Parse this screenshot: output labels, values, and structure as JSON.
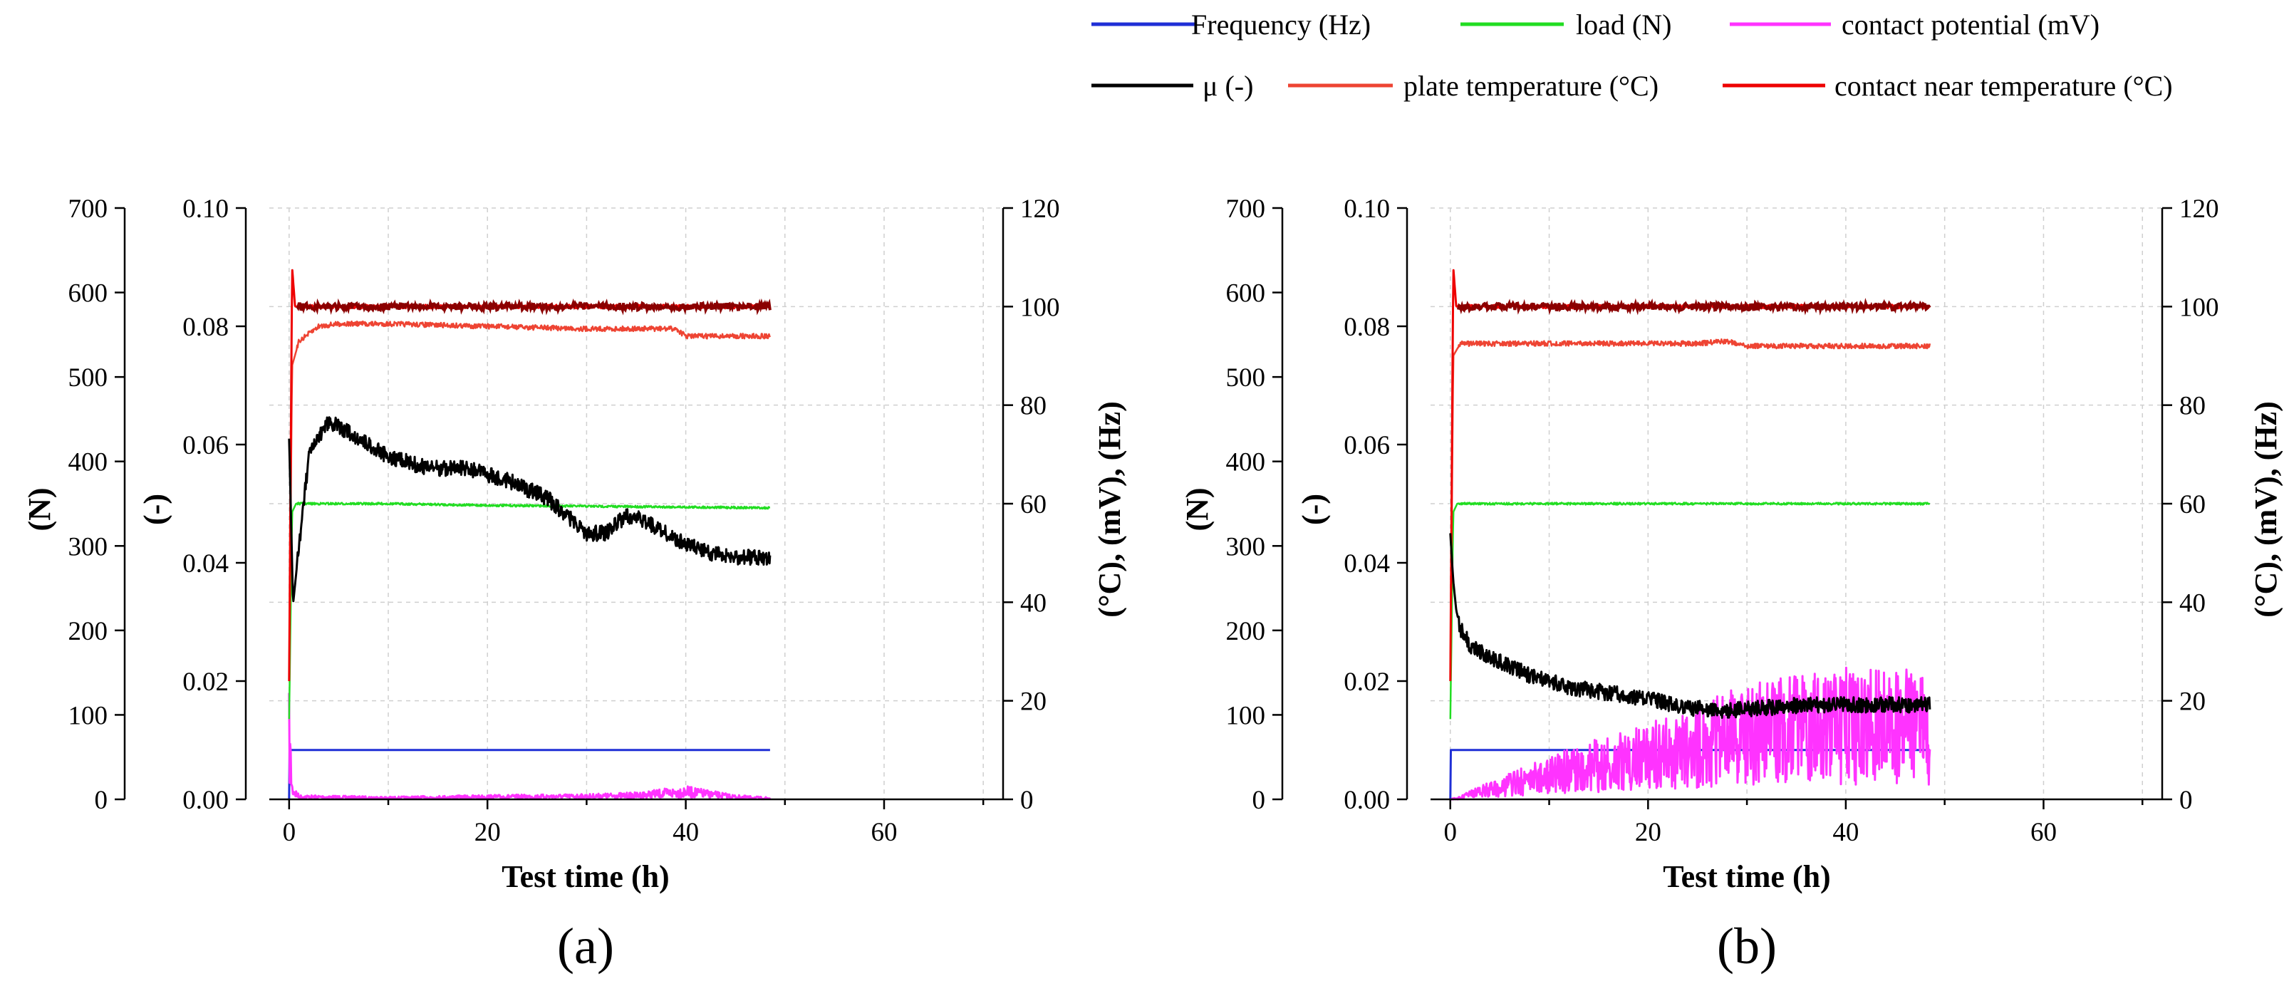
{
  "colors": {
    "frequency": "#1f2fd6",
    "load": "#22dd22",
    "potential": "#ff33ff",
    "mu": "#000000",
    "plate_temp": "#ee4433",
    "contact_temp": "#ee0000",
    "dark_temp": "#8b0000"
  },
  "legend": [
    {
      "key": "frequency",
      "label": "Frequency (Hz)"
    },
    {
      "key": "load",
      "label": "load (N)"
    },
    {
      "key": "potential",
      "label": "contact potential (mV)"
    },
    {
      "key": "mu",
      "label": "μ (-)"
    },
    {
      "key": "plate_temp",
      "label": "plate temperature (°C)"
    },
    {
      "key": "contact_temp",
      "label": "contact near temperature (°C)"
    }
  ],
  "chart_data": [
    {
      "type": "line",
      "panel_label": "(a)",
      "xlabel": "Test time (h)",
      "xlim": [
        -2,
        72
      ],
      "xticks": [
        "0",
        "20",
        "40",
        "60"
      ],
      "axes": {
        "load": {
          "label": "(N)",
          "lim": [
            0,
            700
          ],
          "ticks": [
            "0",
            "100",
            "200",
            "300",
            "400",
            "500",
            "600",
            "700"
          ]
        },
        "mu": {
          "label": "(-)",
          "lim": [
            0,
            0.1
          ],
          "ticks": [
            "0.00",
            "0.02",
            "0.04",
            "0.06",
            "0.08",
            "0.10"
          ]
        },
        "right": {
          "label": "(°C), (mV), (Hz)",
          "lim": [
            0,
            120
          ],
          "ticks": [
            "0",
            "20",
            "40",
            "60",
            "80",
            "100",
            "120"
          ]
        }
      },
      "series": [
        {
          "name": "Frequency (Hz)",
          "axis": "right",
          "x": [
            0,
            0.05,
            48.5
          ],
          "y": [
            0,
            10,
            10
          ]
        },
        {
          "name": "load (N)",
          "axis": "load",
          "x": [
            0,
            0.3,
            0.7,
            1,
            5,
            10,
            20,
            30,
            40,
            48.5
          ],
          "y": [
            95,
            340,
            350,
            350,
            350,
            350,
            348,
            347,
            346,
            345
          ]
        },
        {
          "name": "contact potential (mV)",
          "axis": "right",
          "x": [
            0,
            0.3,
            1,
            10,
            20,
            30,
            35,
            40,
            45,
            48.5
          ],
          "y": [
            12,
            2,
            0.5,
            0.3,
            0.5,
            0.6,
            0.8,
            1.5,
            0.5,
            0.2
          ]
        },
        {
          "name": "μ (-)",
          "axis": "mu",
          "x": [
            0,
            0.4,
            1,
            2,
            3,
            4,
            6,
            8,
            10,
            14,
            18,
            22,
            26,
            28,
            30,
            32,
            34,
            36,
            38,
            40,
            42,
            44,
            46,
            48.5
          ],
          "y": [
            0.061,
            0.033,
            0.043,
            0.058,
            0.061,
            0.064,
            0.062,
            0.06,
            0.058,
            0.056,
            0.056,
            0.054,
            0.051,
            0.048,
            0.045,
            0.045,
            0.048,
            0.047,
            0.045,
            0.043,
            0.042,
            0.041,
            0.041,
            0.041
          ]
        },
        {
          "name": "plate temperature (°C)",
          "axis": "right",
          "x": [
            0,
            0.3,
            1,
            3,
            5,
            10,
            20,
            30,
            39,
            40,
            48.5
          ],
          "y": [
            24,
            88,
            93,
            96,
            96.5,
            96.5,
            96,
            95.5,
            95.5,
            94,
            94
          ]
        },
        {
          "name": "contact near temperature (°C)",
          "axis": "right",
          "x": [
            0,
            0.3,
            0.6,
            1,
            3,
            10,
            20,
            30,
            40,
            48.5
          ],
          "y": [
            24,
            108,
            100,
            100,
            100,
            100,
            100,
            100,
            100,
            100
          ]
        }
      ]
    },
    {
      "type": "line",
      "panel_label": "(b)",
      "xlabel": "Test time (h)",
      "xlim": [
        -2,
        72
      ],
      "xticks": [
        "0",
        "20",
        "40",
        "60"
      ],
      "axes": {
        "load": {
          "label": "(N)",
          "lim": [
            0,
            700
          ],
          "ticks": [
            "0",
            "100",
            "200",
            "300",
            "400",
            "500",
            "600",
            "700"
          ]
        },
        "mu": {
          "label": "(-)",
          "lim": [
            0,
            0.1
          ],
          "ticks": [
            "0.00",
            "0.02",
            "0.04",
            "0.06",
            "0.08",
            "0.10"
          ]
        },
        "right": {
          "label": "(°C), (mV), (Hz)",
          "lim": [
            0,
            120
          ],
          "ticks": [
            "0",
            "20",
            "40",
            "60",
            "80",
            "100",
            "120"
          ]
        }
      },
      "series": [
        {
          "name": "Frequency (Hz)",
          "axis": "right",
          "x": [
            0,
            0.05,
            48.5
          ],
          "y": [
            0,
            10,
            10
          ]
        },
        {
          "name": "load (N)",
          "axis": "load",
          "x": [
            0,
            0.3,
            0.7,
            1,
            10,
            20,
            30,
            40,
            48.5
          ],
          "y": [
            95,
            340,
            350,
            350,
            350,
            350,
            350,
            350,
            350
          ]
        },
        {
          "name": "contact potential (mV)",
          "axis": "right",
          "x": [
            0,
            0.5,
            2,
            5,
            8,
            10,
            15,
            20,
            25,
            30,
            35,
            40,
            45,
            48.5
          ],
          "y": [
            0,
            0,
            1,
            2.5,
            4,
            5,
            7,
            9,
            11,
            13,
            14,
            15,
            15,
            15
          ]
        },
        {
          "name": "μ (-)",
          "axis": "mu",
          "x": [
            0,
            0.3,
            0.6,
            1,
            2,
            4,
            8,
            12,
            16,
            20,
            24,
            28,
            32,
            36,
            40,
            44,
            48.5
          ],
          "y": [
            0.045,
            0.037,
            0.032,
            0.029,
            0.026,
            0.024,
            0.021,
            0.019,
            0.018,
            0.017,
            0.0155,
            0.015,
            0.0155,
            0.016,
            0.016,
            0.016,
            0.016
          ]
        },
        {
          "name": "plate temperature (°C)",
          "axis": "right",
          "x": [
            0,
            0.3,
            1,
            5,
            10,
            20,
            25,
            28,
            30,
            40,
            48.5
          ],
          "y": [
            24,
            90,
            92.5,
            92.5,
            92.5,
            92.5,
            92.5,
            93,
            92,
            92,
            92
          ]
        },
        {
          "name": "contact near temperature (°C)",
          "axis": "right",
          "x": [
            0,
            0.3,
            0.6,
            1,
            5,
            10,
            20,
            30,
            40,
            48.5
          ],
          "y": [
            24,
            108,
            100,
            100,
            100,
            100,
            100,
            100,
            100,
            100
          ]
        }
      ]
    }
  ]
}
